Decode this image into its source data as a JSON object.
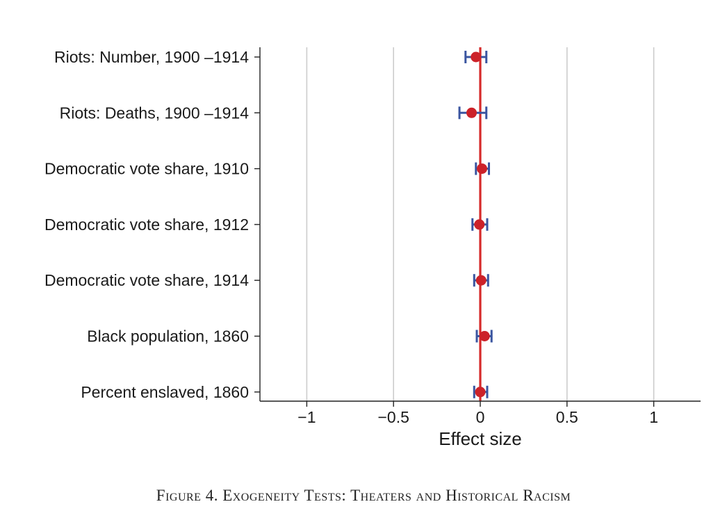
{
  "chart_data": {
    "type": "scatter",
    "orientation": "horizontal",
    "xlabel": "Effect size",
    "xlim": [
      -1.27,
      1.27
    ],
    "xticks": [
      -1,
      -0.5,
      0,
      0.5,
      1
    ],
    "xtick_labels": [
      "−1",
      "−0.5",
      "0",
      "0.5",
      "1"
    ],
    "grid": "vertical",
    "reference_line": 0,
    "categories": [
      "Riots: Number, 1900 –1914",
      "Riots: Deaths, 1900 –1914",
      "Democratic vote share, 1910",
      "Democratic vote share, 1912",
      "Democratic vote share, 1914",
      "Black population, 1860",
      "Percent enslaved, 1860"
    ],
    "estimates": [
      -0.025,
      -0.05,
      0.01,
      -0.005,
      0.005,
      0.025,
      0.0
    ],
    "ci_lower": [
      -0.085,
      -0.12,
      -0.025,
      -0.045,
      -0.035,
      -0.02,
      -0.035
    ],
    "ci_upper": [
      0.035,
      0.035,
      0.05,
      0.04,
      0.045,
      0.065,
      0.04
    ],
    "colors": {
      "point": "#cc2229",
      "error_bar": "#3a55a0",
      "zero_line": "#d62a2a",
      "grid": "#cccccc",
      "axis": "#222222"
    }
  },
  "caption": "Figure 4. Exogeneity Tests: Theaters and Historical Racism"
}
